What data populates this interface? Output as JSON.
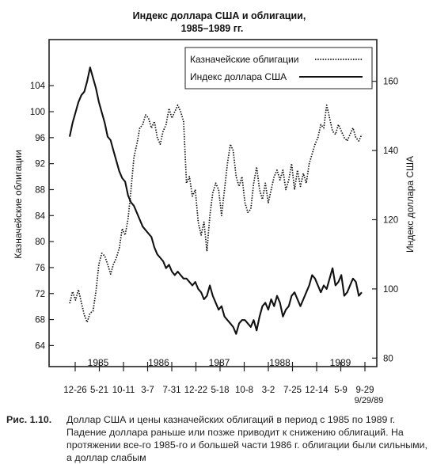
{
  "chart_data": {
    "type": "line",
    "title_line1": "Индекс доллара США и облигации,",
    "title_line2": "1985–1989 гг.",
    "ylabel_left": "Казначейские облигации",
    "ylabel_right": "Индекс доллара США",
    "left_ticks": [
      "64",
      "68",
      "72",
      "76",
      "80",
      "84",
      "88",
      "92",
      "96",
      "100",
      "104"
    ],
    "right_ticks": [
      "80",
      "100",
      "120",
      "140",
      "160"
    ],
    "year_labels": [
      "1985",
      "1986",
      "1987",
      "1988",
      "1989"
    ],
    "x_tick_labels": [
      "12-26",
      "5-21",
      "10-11",
      "3-7",
      "7-31",
      "12-22",
      "5-18",
      "10-8",
      "3-2",
      "7-25",
      "12-14",
      "5-9",
      "9-29"
    ],
    "end_date_label": "9/29/89",
    "ylim_left": [
      61,
      110
    ],
    "ylim_right": [
      78,
      170
    ],
    "xlim": [
      0,
      100
    ],
    "legend_placement": "top-right",
    "series": [
      {
        "name": "Казначейские облигации",
        "axis": "left",
        "style": "dotted",
        "x": [
          0,
          1,
          2,
          3,
          4,
          5,
          6,
          7,
          8,
          9,
          10,
          11,
          12,
          13,
          14,
          15,
          16,
          17,
          18,
          19,
          20,
          21,
          22,
          23,
          24,
          25,
          26,
          27,
          28,
          29,
          30,
          31,
          32,
          33,
          34,
          35,
          36,
          37,
          38,
          39,
          40,
          41,
          42,
          43,
          44,
          45,
          46,
          47,
          48,
          49,
          50,
          51,
          52,
          53,
          54,
          55,
          56,
          57,
          58,
          59,
          60,
          61,
          62,
          63,
          64,
          65,
          66,
          67,
          68,
          69,
          70,
          71,
          72,
          73,
          74,
          75,
          76,
          77,
          78,
          79,
          80,
          81,
          82,
          83,
          84,
          85,
          86,
          87,
          88,
          89,
          90,
          91,
          92,
          93,
          94,
          95,
          96,
          97,
          98,
          99,
          100
        ],
        "values": [
          70.5,
          72.3,
          71.0,
          72.6,
          70.6,
          68.7,
          67.6,
          69.0,
          69.3,
          72.3,
          76.5,
          78.2,
          77.8,
          76.5,
          75.0,
          76.5,
          77.5,
          79.0,
          82.0,
          81.0,
          83.5,
          88.0,
          93.0,
          95.0,
          97.5,
          98.0,
          99.5,
          99.0,
          97.5,
          98.5,
          96.0,
          95.0,
          97.0,
          98.0,
          100.5,
          99.0,
          100.0,
          101.0,
          100.0,
          98.5,
          89.0,
          90.0,
          87.0,
          88.0,
          83.0,
          81.0,
          83.0,
          78.5,
          84.0,
          87.5,
          89.0,
          88.0,
          84.0,
          88.0,
          92.0,
          95.0,
          94.0,
          90.0,
          88.5,
          90.0,
          86.0,
          84.5,
          85.0,
          89.0,
          91.5,
          88.0,
          86.5,
          89.0,
          86.0,
          88.0,
          90.0,
          91.0,
          89.5,
          91.0,
          88.0,
          89.5,
          92.0,
          88.0,
          91.0,
          88.5,
          90.5,
          89.0,
          92.0,
          93.5,
          95.0,
          96.0,
          98.0,
          97.5,
          101.0,
          99.0,
          97.0,
          96.5,
          98.0,
          97.0,
          96.0,
          95.5,
          96.5,
          97.5,
          96.0,
          95.5,
          96.5
        ]
      },
      {
        "name": "Индекс доллара США",
        "axis": "right",
        "style": "solid",
        "x": [
          0,
          1,
          2,
          3,
          4,
          5,
          6,
          7,
          8,
          9,
          10,
          11,
          12,
          13,
          14,
          15,
          16,
          17,
          18,
          19,
          20,
          21,
          22,
          23,
          24,
          25,
          26,
          27,
          28,
          29,
          30,
          31,
          32,
          33,
          34,
          35,
          36,
          37,
          38,
          39,
          40,
          41,
          42,
          43,
          44,
          45,
          46,
          47,
          48,
          49,
          50,
          51,
          52,
          53,
          54,
          55,
          56,
          57,
          58,
          59,
          60,
          61,
          62,
          63,
          64,
          65,
          66,
          67,
          68,
          69,
          70,
          71,
          72,
          73,
          74,
          75,
          76,
          77,
          78,
          79,
          80,
          81,
          82,
          83,
          84,
          85,
          86,
          87,
          88,
          89,
          90,
          91,
          92,
          93,
          94,
          95,
          96,
          97,
          98,
          99,
          100
        ],
        "values": [
          144,
          148,
          151,
          154,
          156,
          157,
          160,
          164,
          161,
          158,
          154,
          151,
          148,
          144,
          143,
          140,
          137,
          134,
          132,
          131,
          127,
          125,
          124,
          122,
          120,
          118,
          117,
          116,
          115,
          112,
          110,
          109,
          108,
          106,
          107,
          105,
          104,
          105,
          104,
          103,
          103,
          102,
          101,
          102,
          100,
          99,
          97,
          98,
          101,
          98,
          96,
          94,
          95,
          92,
          91,
          90,
          89,
          87,
          90,
          91,
          91,
          90,
          89,
          91,
          88,
          92,
          95,
          96,
          94,
          97,
          95,
          98,
          96,
          92,
          94,
          95,
          98,
          99,
          97,
          95,
          97,
          99,
          101,
          104,
          103,
          101,
          99,
          101,
          100,
          103,
          106,
          101,
          102,
          104,
          98,
          99,
          101,
          103,
          102,
          98,
          99
        ]
      }
    ]
  },
  "caption": {
    "label": "Рис. 1.10.",
    "text": "Доллар США и цены казначейских облигаций в период с 1985 по 1989 г. Падение доллара раньше или позже приводит к снижению облигаций. На протяжении все-го 1985-го и большей части 1986 г. облигации были сильными, а доллар слабым"
  }
}
